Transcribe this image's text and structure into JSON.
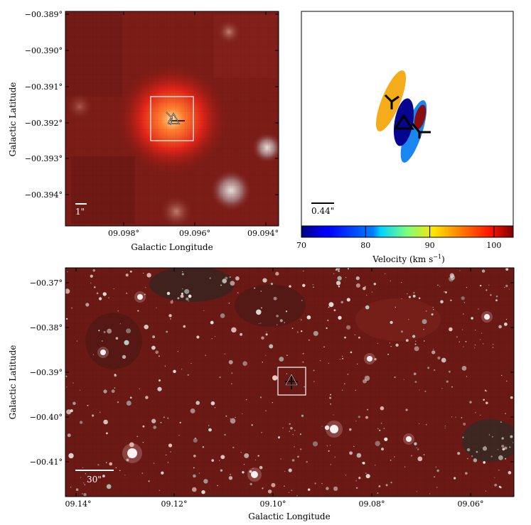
{
  "panel_a": {
    "x_ticks": [
      "09.098°",
      "09.096°",
      "09.094°"
    ],
    "y_ticks": [
      "−00.389°",
      "−00.390°",
      "−00.391°",
      "−00.392°",
      "−00.393°",
      "−00.394°"
    ],
    "xlabel": "Galactic Longitude",
    "ylabel": "Galactic Latitude",
    "scale_label": "1\""
  },
  "panel_b": {
    "scale_label": "0.44\"",
    "colorbar_ticks": [
      "70",
      "80",
      "90",
      "100"
    ],
    "colorbar_label": "Velocity (km s",
    "colorbar_label_sup": "−1",
    "colorbar_label_close": ")",
    "colorbar_range": [
      70,
      103
    ]
  },
  "panel_c": {
    "x_ticks": [
      "09.14°",
      "09.12°",
      "09.10°",
      "09.08°",
      "09.06°"
    ],
    "y_ticks": [
      "−00.37°",
      "−00.38°",
      "−00.39°",
      "−00.40°",
      "−00.41°"
    ],
    "xlabel": "Galactic Longitude",
    "ylabel": "Galactic Latitude",
    "scale_label": "30\""
  },
  "colors": {
    "ellipse_orange": "#f5ac1a",
    "ellipse_navy": "#05058f",
    "ellipse_blue": "#1a86f0",
    "ellipse_darkred": "#8a0d10"
  }
}
